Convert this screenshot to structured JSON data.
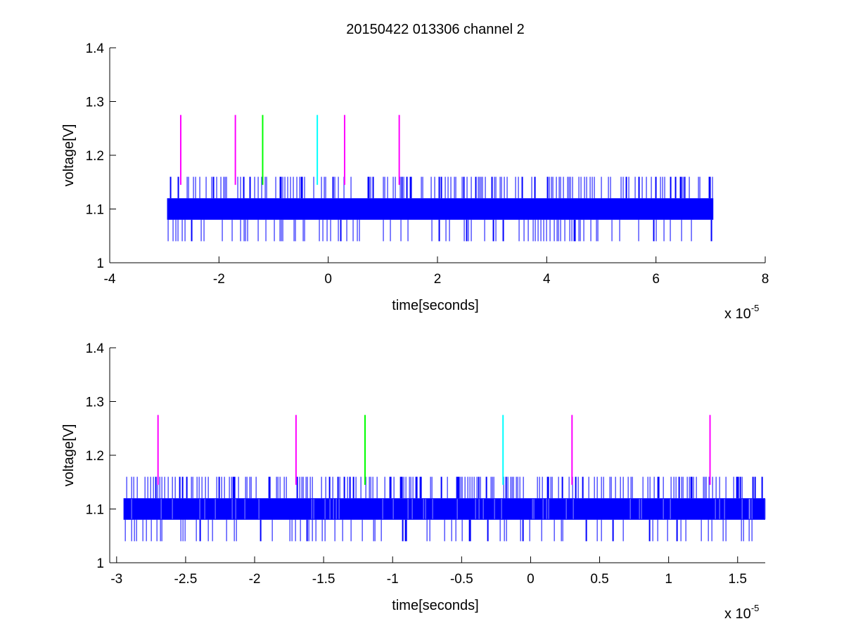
{
  "chart_data": [
    {
      "type": "line",
      "title": "20150422 013306 channel 2",
      "xlabel": "time[seconds]",
      "ylabel": "voltage[V]",
      "x_multiplier": "x 10",
      "x_exponent": "-5",
      "xlim": [
        -4,
        8
      ],
      "ylim": [
        1,
        1.4
      ],
      "xticks": [
        -4,
        -2,
        0,
        2,
        4,
        6,
        8
      ],
      "xtick_labels": [
        "-4",
        "-2",
        "0",
        "2",
        "4",
        "6",
        "8"
      ],
      "yticks": [
        1,
        1.1,
        1.2,
        1.3,
        1.4
      ],
      "ytick_labels": [
        "1",
        "1.1",
        "1.2",
        "1.3",
        "1.4"
      ],
      "grid": false,
      "series": [
        {
          "kind": "signal",
          "color": "#0000ff",
          "x_range": [
            -2.95,
            7.05
          ],
          "band": [
            1.08,
            1.12
          ],
          "spike_high": 1.16,
          "spike_low": 1.04
        }
      ],
      "markers": [
        {
          "x": -2.7,
          "y_range": [
            1.145,
            1.275
          ],
          "color": "#ff00ff"
        },
        {
          "x": -1.7,
          "y_range": [
            1.145,
            1.275
          ],
          "color": "#ff00ff"
        },
        {
          "x": -1.2,
          "y_range": [
            1.145,
            1.275
          ],
          "color": "#00ff00"
        },
        {
          "x": -0.2,
          "y_range": [
            1.145,
            1.275
          ],
          "color": "#00ffff"
        },
        {
          "x": 0.3,
          "y_range": [
            1.145,
            1.275
          ],
          "color": "#ff00ff"
        },
        {
          "x": 1.3,
          "y_range": [
            1.145,
            1.275
          ],
          "color": "#ff00ff"
        }
      ]
    },
    {
      "type": "line",
      "title": "",
      "xlabel": "time[seconds]",
      "ylabel": "voltage[V]",
      "x_multiplier": "x 10",
      "x_exponent": "-5",
      "xlim": [
        -3.05,
        1.7
      ],
      "ylim": [
        1,
        1.4
      ],
      "xticks": [
        -3,
        -2.5,
        -2,
        -1.5,
        -1,
        -0.5,
        0,
        0.5,
        1,
        1.5
      ],
      "xtick_labels": [
        "-3",
        "-2.5",
        "-2",
        "-1.5",
        "-1",
        "-0.5",
        "0",
        "0.5",
        "1",
        "1.5"
      ],
      "yticks": [
        1,
        1.1,
        1.2,
        1.3,
        1.4
      ],
      "ytick_labels": [
        "1",
        "1.1",
        "1.2",
        "1.3",
        "1.4"
      ],
      "grid": false,
      "series": [
        {
          "kind": "signal",
          "color": "#0000ff",
          "x_range": [
            -2.95,
            1.7
          ],
          "band": [
            1.08,
            1.12
          ],
          "spike_high": 1.16,
          "spike_low": 1.04
        }
      ],
      "markers": [
        {
          "x": -2.7,
          "y_range": [
            1.145,
            1.275
          ],
          "color": "#ff00ff"
        },
        {
          "x": -1.7,
          "y_range": [
            1.145,
            1.275
          ],
          "color": "#ff00ff"
        },
        {
          "x": -1.2,
          "y_range": [
            1.145,
            1.275
          ],
          "color": "#00ff00"
        },
        {
          "x": -0.2,
          "y_range": [
            1.145,
            1.275
          ],
          "color": "#00ffff"
        },
        {
          "x": 0.3,
          "y_range": [
            1.145,
            1.275
          ],
          "color": "#ff00ff"
        },
        {
          "x": 1.3,
          "y_range": [
            1.145,
            1.275
          ],
          "color": "#ff00ff"
        }
      ]
    }
  ]
}
